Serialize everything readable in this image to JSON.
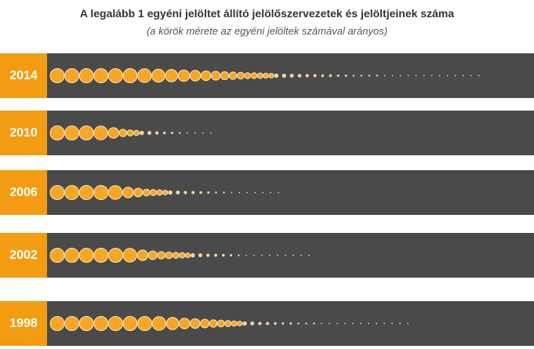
{
  "chart_data": {
    "type": "bubble-row",
    "title": "A legalább 1 egyéni jelöltet állító jelölőszervezetek és jelöltjeinek száma",
    "subtitle": "(a körök mérete az egyéni jelöltek számával arányos)",
    "colors": {
      "label_bg": "#f39c12",
      "bar_bg": "#4a4a4a",
      "circle_fill": "#f6a623",
      "circle_stroke": "#fde6b8",
      "small_dot": "#f7d8a0",
      "tiny_dot": "#d9d9d9"
    },
    "series": [
      {
        "year": "2014",
        "values": [
          106,
          106,
          106,
          106,
          106,
          106,
          100,
          90,
          80,
          70,
          60,
          50,
          42,
          35,
          30,
          25,
          20,
          18,
          16,
          14,
          12,
          10,
          9,
          8,
          7,
          6,
          5,
          4,
          4,
          3,
          3,
          2,
          2,
          2,
          2,
          1,
          1,
          1,
          1,
          1,
          1,
          1,
          1,
          1,
          1,
          1,
          1,
          1
        ]
      },
      {
        "year": "2010",
        "values": [
          106,
          106,
          106,
          100,
          60,
          30,
          20,
          15,
          10,
          8,
          6,
          4,
          3,
          2,
          1,
          1,
          1,
          1
        ]
      },
      {
        "year": "2006",
        "values": [
          106,
          106,
          106,
          106,
          100,
          60,
          40,
          25,
          20,
          16,
          12,
          10,
          8,
          6,
          5,
          4,
          3,
          2,
          2,
          1,
          1,
          1,
          1,
          1,
          1,
          1
        ]
      },
      {
        "year": "2002",
        "values": [
          106,
          106,
          106,
          106,
          106,
          100,
          60,
          40,
          30,
          25,
          20,
          16,
          12,
          10,
          8,
          6,
          5,
          4,
          3,
          2,
          1,
          1,
          1,
          1,
          1,
          1,
          1,
          1,
          1
        ]
      },
      {
        "year": "1998",
        "values": [
          106,
          106,
          106,
          106,
          106,
          106,
          106,
          100,
          80,
          60,
          50,
          40,
          30,
          25,
          20,
          15,
          12,
          10,
          8,
          6,
          5,
          4,
          3,
          3,
          2,
          2,
          2,
          1,
          1,
          1,
          1,
          1,
          1,
          1,
          1,
          1,
          1,
          1,
          1
        ]
      }
    ]
  }
}
